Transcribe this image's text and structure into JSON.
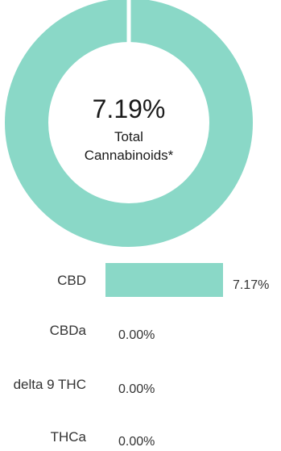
{
  "summary": {
    "value": "7.19%",
    "label_line1": "Total",
    "label_line2": "Cannabinoids*"
  },
  "colors": {
    "accent": "#8ad8c7",
    "text": "#333333",
    "background": "#ffffff"
  },
  "chart_data": [
    {
      "type": "pie",
      "variant": "donut",
      "values": [
        100
      ],
      "center_text": [
        "7.19%",
        "Total",
        "Cannabinoids*"
      ]
    },
    {
      "type": "bar",
      "orientation": "horizontal",
      "categories": [
        "CBD",
        "CBDa",
        "delta 9 THC",
        "THCa"
      ],
      "values": [
        7.17,
        0.0,
        0.0,
        0.0
      ],
      "value_labels": [
        "7.17%",
        "0.00%",
        "0.00%",
        "0.00%"
      ],
      "unit": "%",
      "xlim": [
        0,
        7.17
      ],
      "grid": false
    }
  ]
}
